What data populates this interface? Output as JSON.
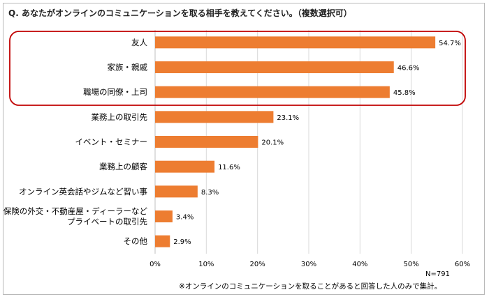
{
  "chart_data": {
    "type": "bar",
    "orientation": "horizontal",
    "title": "Q. あなたがオンラインのコミュニケーションを取る相手を教えてください。（複数選択可）",
    "categories": [
      "友人",
      "家族・親戚",
      "職場の同僚・上司",
      "業務上の取引先",
      "イベント・セミナー",
      "業務上の顧客",
      "オンライン英会話やジムなど習い事",
      "保険の外交・不動産屋・ディーラーなど\nプライベートの取引先",
      "その他"
    ],
    "values": [
      54.7,
      46.6,
      45.8,
      23.1,
      20.1,
      11.6,
      8.3,
      3.4,
      2.9
    ],
    "value_labels": [
      "54.7%",
      "46.6%",
      "45.8%",
      "23.1%",
      "20.1%",
      "11.6%",
      "8.3%",
      "3.4%",
      "2.9%"
    ],
    "xlim": [
      0,
      60
    ],
    "xticks": [
      "0%",
      "10%",
      "20%",
      "30%",
      "40%",
      "50%",
      "60%"
    ],
    "grid": true,
    "bar_color": "#ed7d31",
    "highlight_color": "#c00000",
    "highlight_categories": [
      "友人",
      "家族・親戚",
      "職場の同僚・上司"
    ],
    "sample_size": "N=791",
    "footnote": "※オンラインのコミュニケーションを取ることがあると回答した人のみで集計。"
  }
}
